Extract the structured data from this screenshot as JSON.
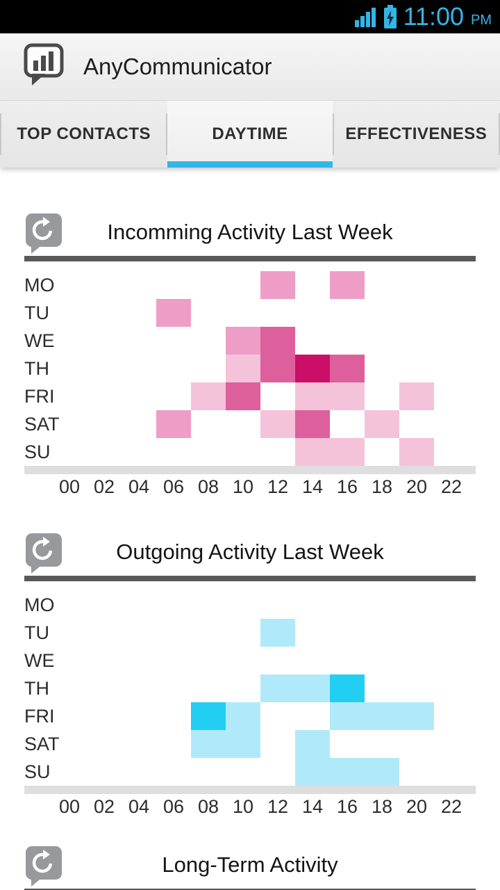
{
  "status_bar": {
    "time": "11:00",
    "period": "PM",
    "icons": [
      "signal-strength-icon",
      "battery-charging-icon"
    ],
    "accent_color": "#33b5e5"
  },
  "action_bar": {
    "title": "AnyCommunicator",
    "app_icon": "bar-chart-speech-bubble-icon"
  },
  "tabs": [
    {
      "label": "TOP CONTACTS",
      "selected": false
    },
    {
      "label": "DAYTIME",
      "selected": true
    },
    {
      "label": "EFFECTIVENESS",
      "selected": false
    }
  ],
  "colors": {
    "accent_blue": "#33b5e5",
    "section_rule": "#595959",
    "axis_strip": "#dedede",
    "incoming_palette": [
      "#f4c3da",
      "#ee9dc7",
      "#dd5f9c",
      "#cb0e67"
    ],
    "outgoing_palette": [
      "#b0eafa",
      "#22cff2"
    ]
  },
  "chart_data": [
    {
      "type": "heatmap",
      "title": "Incomming Activity Last Week",
      "icon": "activity-history-icon",
      "days": [
        "MO",
        "TU",
        "WE",
        "TH",
        "FRI",
        "SAT",
        "SU"
      ],
      "hours": [
        "00",
        "02",
        "04",
        "06",
        "08",
        "10",
        "12",
        "14",
        "16",
        "18",
        "20",
        "22"
      ],
      "palette": [
        "#f4c3da",
        "#ee9dc7",
        "#dd5f9c",
        "#cb0e67"
      ],
      "legend": "level 1 = light pink (low) to level 4 = dark magenta (high)",
      "cells": [
        {
          "day": "MO",
          "hour": "12",
          "level": 2
        },
        {
          "day": "MO",
          "hour": "16",
          "level": 2
        },
        {
          "day": "TU",
          "hour": "06",
          "level": 2
        },
        {
          "day": "WE",
          "hour": "10",
          "level": 2
        },
        {
          "day": "WE",
          "hour": "12",
          "level": 3
        },
        {
          "day": "TH",
          "hour": "10",
          "level": 1
        },
        {
          "day": "TH",
          "hour": "12",
          "level": 3
        },
        {
          "day": "TH",
          "hour": "14",
          "level": 4
        },
        {
          "day": "TH",
          "hour": "16",
          "level": 3
        },
        {
          "day": "FRI",
          "hour": "08",
          "level": 1
        },
        {
          "day": "FRI",
          "hour": "10",
          "level": 3
        },
        {
          "day": "FRI",
          "hour": "14",
          "level": 1
        },
        {
          "day": "FRI",
          "hour": "16",
          "level": 1
        },
        {
          "day": "FRI",
          "hour": "20",
          "level": 1
        },
        {
          "day": "SAT",
          "hour": "06",
          "level": 2
        },
        {
          "day": "SAT",
          "hour": "12",
          "level": 1
        },
        {
          "day": "SAT",
          "hour": "14",
          "level": 3
        },
        {
          "day": "SAT",
          "hour": "18",
          "level": 1
        },
        {
          "day": "SU",
          "hour": "14",
          "level": 1
        },
        {
          "day": "SU",
          "hour": "16",
          "level": 1
        },
        {
          "day": "SU",
          "hour": "20",
          "level": 1
        }
      ]
    },
    {
      "type": "heatmap",
      "title": "Outgoing Activity Last Week",
      "icon": "activity-history-icon",
      "days": [
        "MO",
        "TU",
        "WE",
        "TH",
        "FRI",
        "SAT",
        "SU"
      ],
      "hours": [
        "00",
        "02",
        "04",
        "06",
        "08",
        "10",
        "12",
        "14",
        "16",
        "18",
        "20",
        "22"
      ],
      "palette": [
        "#b0eafa",
        "#22cff2"
      ],
      "legend": "level 1 = light cyan (low), level 2 = bright cyan (high)",
      "cells": [
        {
          "day": "TU",
          "hour": "12",
          "level": 1
        },
        {
          "day": "TH",
          "hour": "12",
          "level": 1
        },
        {
          "day": "TH",
          "hour": "14",
          "level": 1
        },
        {
          "day": "TH",
          "hour": "16",
          "level": 2
        },
        {
          "day": "FRI",
          "hour": "08",
          "level": 2
        },
        {
          "day": "FRI",
          "hour": "10",
          "level": 1
        },
        {
          "day": "FRI",
          "hour": "16",
          "level": 1
        },
        {
          "day": "FRI",
          "hour": "18",
          "level": 1
        },
        {
          "day": "FRI",
          "hour": "20",
          "level": 1
        },
        {
          "day": "SAT",
          "hour": "08",
          "level": 1
        },
        {
          "day": "SAT",
          "hour": "10",
          "level": 1
        },
        {
          "day": "SAT",
          "hour": "14",
          "level": 1
        },
        {
          "day": "SU",
          "hour": "14",
          "level": 1
        },
        {
          "day": "SU",
          "hour": "16",
          "level": 1
        },
        {
          "day": "SU",
          "hour": "18",
          "level": 1
        }
      ]
    },
    {
      "type": "heatmap",
      "title": "Long-Term Activity",
      "icon": "activity-history-icon"
    }
  ]
}
